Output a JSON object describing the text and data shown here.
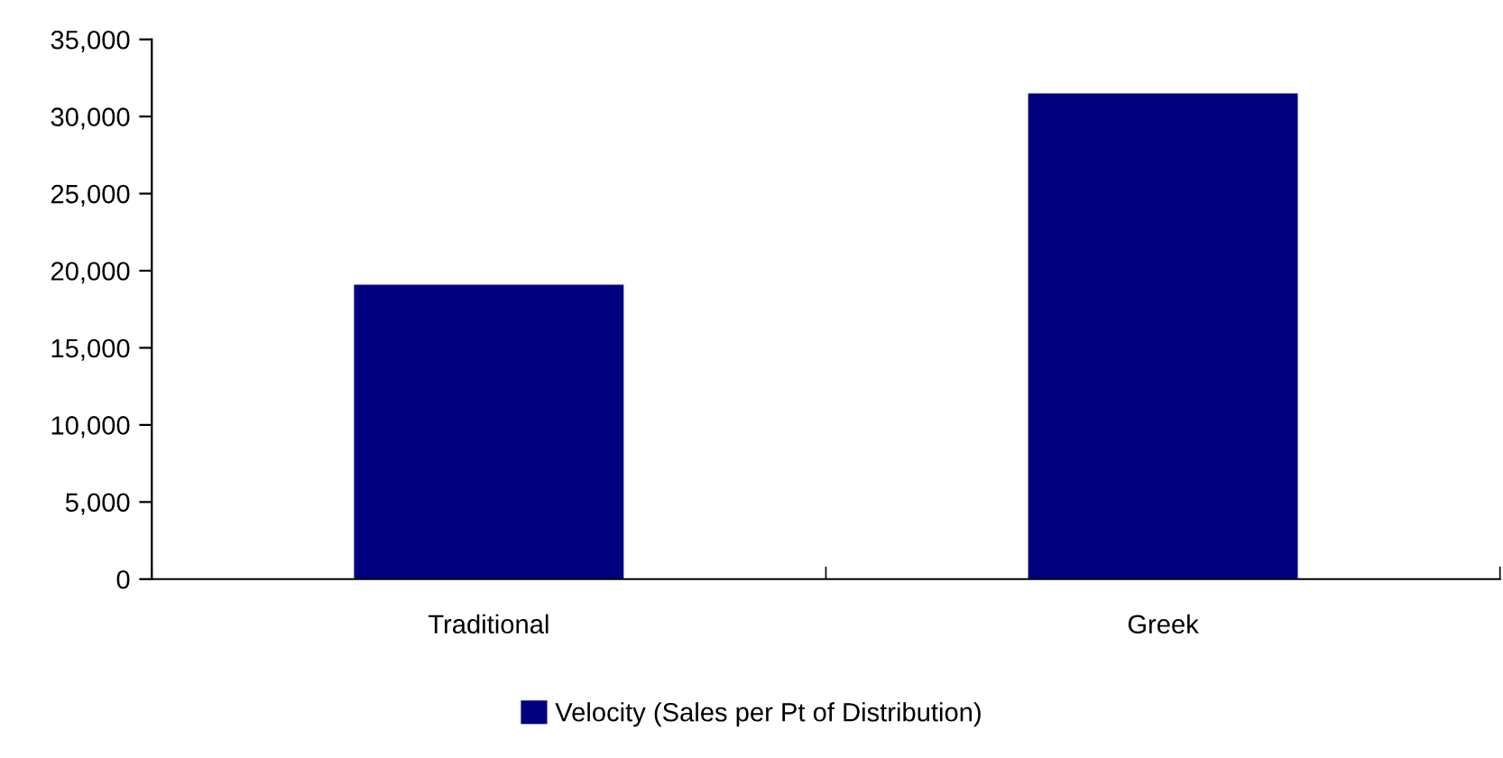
{
  "chart_data": {
    "type": "bar",
    "categories": [
      "Traditional",
      "Greek"
    ],
    "series": [
      {
        "name": "Velocity (Sales per Pt of Distribution)",
        "color": "#000080",
        "values": [
          19100,
          31500
        ]
      }
    ],
    "ylim": [
      0,
      35000
    ],
    "yticks": [
      {
        "value": 0,
        "label": "0"
      },
      {
        "value": 5000,
        "label": "5,000"
      },
      {
        "value": 10000,
        "label": "10,000"
      },
      {
        "value": 15000,
        "label": "15,000"
      },
      {
        "value": 20000,
        "label": "20,000"
      },
      {
        "value": 25000,
        "label": "25,000"
      },
      {
        "value": 30000,
        "label": "30,000"
      },
      {
        "value": 35000,
        "label": "35,000"
      }
    ],
    "grid": false,
    "legend": "bottom"
  }
}
